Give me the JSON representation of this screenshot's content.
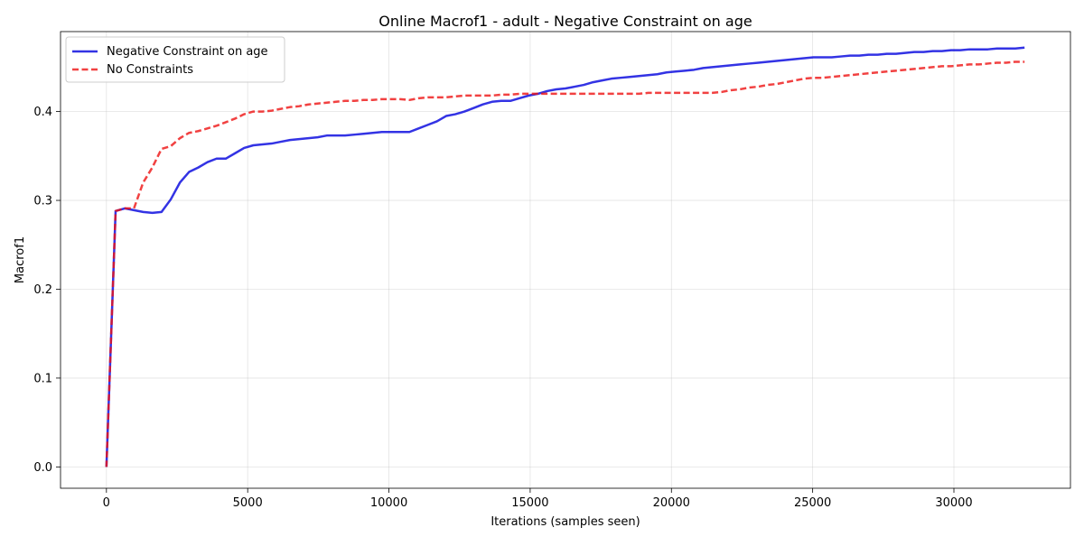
{
  "chart_data": {
    "type": "line",
    "title": "Online Macrof1 - adult - Negative Constraint on age",
    "xlabel": "Iterations (samples seen)",
    "ylabel": "Macrof1",
    "xlim": [
      -1625,
      34125
    ],
    "ylim": [
      -0.024,
      0.49
    ],
    "xticks": [
      0,
      5000,
      10000,
      15000,
      20000,
      25000,
      30000
    ],
    "xtick_labels": [
      "0",
      "5000",
      "10000",
      "15000",
      "20000",
      "25000",
      "30000"
    ],
    "yticks": [
      0.0,
      0.1,
      0.2,
      0.3,
      0.4
    ],
    "ytick_labels": [
      "0.0",
      "0.1",
      "0.2",
      "0.3",
      "0.4"
    ],
    "grid": true,
    "legend_position": "top-left",
    "series": [
      {
        "name": "Negative Constraint on age",
        "color": "#0000dd",
        "style": "solid",
        "x": [
          0,
          325,
          650,
          975,
          1300,
          1625,
          1950,
          2275,
          2600,
          2925,
          3250,
          3575,
          3900,
          4225,
          4550,
          4875,
          5200,
          5525,
          5850,
          6175,
          6500,
          6825,
          7150,
          7475,
          7800,
          8125,
          8450,
          8775,
          9100,
          9425,
          9750,
          10075,
          10400,
          10725,
          11050,
          11375,
          11700,
          12025,
          12350,
          12675,
          13000,
          13325,
          13650,
          13975,
          14300,
          14625,
          14950,
          15275,
          15600,
          15925,
          16250,
          16575,
          16900,
          17225,
          17550,
          17875,
          18200,
          18525,
          18850,
          19175,
          19500,
          19825,
          20150,
          20475,
          20800,
          21125,
          21450,
          21775,
          22100,
          22425,
          22750,
          23075,
          23400,
          23725,
          24050,
          24375,
          24700,
          25025,
          25350,
          25675,
          26000,
          26325,
          26650,
          26975,
          27300,
          27625,
          27950,
          28275,
          28600,
          28925,
          29250,
          29575,
          29900,
          30225,
          30550,
          30875,
          31200,
          31525,
          31850,
          32175,
          32500
        ],
        "values": [
          0.0,
          0.288,
          0.291,
          0.289,
          0.287,
          0.286,
          0.287,
          0.301,
          0.32,
          0.332,
          0.337,
          0.343,
          0.347,
          0.347,
          0.353,
          0.359,
          0.362,
          0.363,
          0.364,
          0.366,
          0.368,
          0.369,
          0.37,
          0.371,
          0.373,
          0.373,
          0.373,
          0.374,
          0.375,
          0.376,
          0.377,
          0.377,
          0.377,
          0.377,
          0.381,
          0.385,
          0.389,
          0.395,
          0.397,
          0.4,
          0.404,
          0.408,
          0.411,
          0.412,
          0.412,
          0.415,
          0.418,
          0.42,
          0.423,
          0.425,
          0.426,
          0.428,
          0.43,
          0.433,
          0.435,
          0.437,
          0.438,
          0.439,
          0.44,
          0.441,
          0.442,
          0.444,
          0.445,
          0.446,
          0.447,
          0.449,
          0.45,
          0.451,
          0.452,
          0.453,
          0.454,
          0.455,
          0.456,
          0.457,
          0.458,
          0.459,
          0.46,
          0.461,
          0.461,
          0.461,
          0.462,
          0.463,
          0.463,
          0.464,
          0.464,
          0.465,
          0.465,
          0.466,
          0.467,
          0.467,
          0.468,
          0.468,
          0.469,
          0.469,
          0.47,
          0.47,
          0.47,
          0.471,
          0.471,
          0.471,
          0.472
        ]
      },
      {
        "name": "No Constraints",
        "color": "#ee1111",
        "style": "dashed",
        "x": [
          0,
          325,
          650,
          975,
          1300,
          1625,
          1950,
          2275,
          2600,
          2925,
          3250,
          3575,
          3900,
          4225,
          4550,
          4875,
          5200,
          5525,
          5850,
          6175,
          6500,
          6825,
          7150,
          7475,
          7800,
          8125,
          8450,
          8775,
          9100,
          9425,
          9750,
          10075,
          10400,
          10725,
          11050,
          11375,
          11700,
          12025,
          12350,
          12675,
          13000,
          13325,
          13650,
          13975,
          14300,
          14625,
          14950,
          15275,
          15600,
          15925,
          16250,
          16575,
          16900,
          17225,
          17550,
          17875,
          18200,
          18525,
          18850,
          19175,
          19500,
          19825,
          20150,
          20475,
          20800,
          21125,
          21450,
          21775,
          22100,
          22425,
          22750,
          23075,
          23400,
          23725,
          24050,
          24375,
          24700,
          25025,
          25350,
          25675,
          26000,
          26325,
          26650,
          26975,
          27300,
          27625,
          27950,
          28275,
          28600,
          28925,
          29250,
          29575,
          29900,
          30225,
          30550,
          30875,
          31200,
          31525,
          31850,
          32175,
          32500
        ],
        "values": [
          0.0,
          0.288,
          0.291,
          0.291,
          0.32,
          0.337,
          0.358,
          0.361,
          0.37,
          0.376,
          0.378,
          0.381,
          0.384,
          0.388,
          0.392,
          0.397,
          0.4,
          0.4,
          0.401,
          0.403,
          0.405,
          0.406,
          0.408,
          0.409,
          0.41,
          0.411,
          0.412,
          0.412,
          0.413,
          0.413,
          0.414,
          0.414,
          0.414,
          0.413,
          0.415,
          0.416,
          0.416,
          0.416,
          0.417,
          0.418,
          0.418,
          0.418,
          0.418,
          0.419,
          0.419,
          0.42,
          0.42,
          0.42,
          0.42,
          0.42,
          0.42,
          0.42,
          0.42,
          0.42,
          0.42,
          0.42,
          0.42,
          0.42,
          0.42,
          0.421,
          0.421,
          0.421,
          0.421,
          0.421,
          0.421,
          0.421,
          0.421,
          0.422,
          0.424,
          0.425,
          0.427,
          0.428,
          0.43,
          0.431,
          0.433,
          0.435,
          0.437,
          0.438,
          0.438,
          0.439,
          0.44,
          0.441,
          0.442,
          0.443,
          0.444,
          0.445,
          0.446,
          0.447,
          0.448,
          0.449,
          0.45,
          0.451,
          0.451,
          0.452,
          0.453,
          0.453,
          0.454,
          0.455,
          0.455,
          0.456,
          0.456
        ]
      }
    ]
  }
}
